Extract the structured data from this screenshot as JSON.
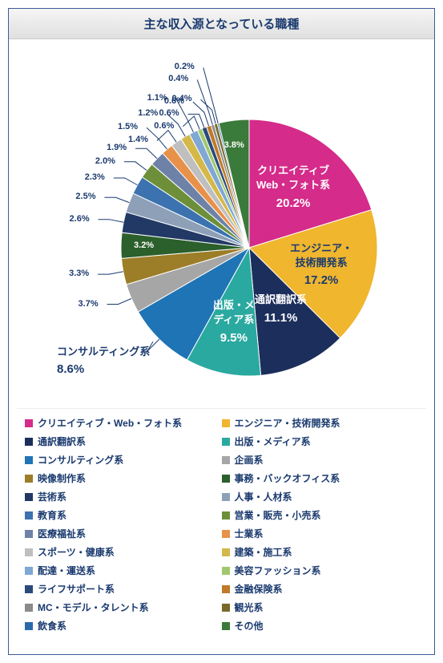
{
  "title": "主な収入源となっている職種",
  "chart": {
    "type": "pie",
    "background_color": "#ffffff",
    "border_color": "#3b5998",
    "title_color": "#1a3a6e",
    "label_color": "#1a3a6e",
    "label_fontsize": 11,
    "slices": [
      {
        "label": "クリエイティブ・Web・フォト系",
        "short": "クリエイティブ\nWeb・フォト系",
        "value": 20.2,
        "color": "#d52b8a",
        "big": true,
        "textcolor": "#ffffff"
      },
      {
        "label": "エンジニア・技術開発系",
        "short": "エンジニア・\n技術開発系",
        "value": 17.2,
        "color": "#f0b62e",
        "big": true,
        "textcolor": "#1a3a6e"
      },
      {
        "label": "通訳翻訳系",
        "short": "通訳翻訳系",
        "value": 11.1,
        "color": "#1c2e5b",
        "big": true,
        "textcolor": "#ffffff"
      },
      {
        "label": "出版・メディア系",
        "short": "出版・メ\nディア系",
        "value": 9.5,
        "color": "#2aa9a0",
        "big": true,
        "textcolor": "#ffffff"
      },
      {
        "label": "コンサルティング系",
        "short": "コンサルティング系",
        "value": 8.6,
        "color": "#1f74b5",
        "big": true,
        "textcolor": "#1a3a6e",
        "outside": true
      },
      {
        "label": "企画系",
        "value": 3.7,
        "color": "#a6a6a6"
      },
      {
        "label": "映像制作系",
        "value": 3.3,
        "color": "#9c7d28"
      },
      {
        "label": "事務・バックオフィス系",
        "value": 3.2,
        "color": "#2b5f2b",
        "textcolor": "#ffffff"
      },
      {
        "label": "芸術系",
        "value": 2.6,
        "color": "#223965"
      },
      {
        "label": "人事・人材系",
        "value": 2.5,
        "color": "#8da0b8"
      },
      {
        "label": "教育系",
        "value": 2.3,
        "color": "#3b72af"
      },
      {
        "label": "営業・販売・小売系",
        "value": 2.0,
        "color": "#6d8f3a"
      },
      {
        "label": "医療福祉系",
        "value": 1.9,
        "color": "#6e82a8"
      },
      {
        "label": "士業系",
        "value": 1.5,
        "color": "#e8914a"
      },
      {
        "label": "スポーツ・健康系",
        "value": 1.4,
        "color": "#bfbfbf"
      },
      {
        "label": "建築・施工系",
        "value": 1.2,
        "color": "#d4b84a"
      },
      {
        "label": "配達・運送系",
        "value": 1.1,
        "color": "#7fa8d4"
      },
      {
        "label": "美容ファッション系",
        "value": 0.6,
        "color": "#a0c86e"
      },
      {
        "label": "ライフサポート系",
        "value": 0.6,
        "color": "#2a4a7a"
      },
      {
        "label": "金融保険系",
        "value": 0.6,
        "color": "#c07a2a"
      },
      {
        "label": "MC・モデル・タレント系",
        "value": 0.4,
        "color": "#8a8a8a"
      },
      {
        "label": "観光系",
        "value": 0.4,
        "color": "#7a6a2a"
      },
      {
        "label": "飲食系",
        "value": 0.2,
        "color": "#2a6aaa"
      },
      {
        "label": "その他",
        "value": 3.8,
        "color": "#3a7a3a"
      }
    ],
    "outer_labels": [
      {
        "text": "3.7%",
        "slice": 5
      },
      {
        "text": "3.3%",
        "slice": 6
      },
      {
        "text": "3.2%",
        "slice": 7,
        "inside": true
      },
      {
        "text": "2.6%",
        "slice": 8
      },
      {
        "text": "2.5%",
        "slice": 9
      },
      {
        "text": "2.3%",
        "slice": 10
      },
      {
        "text": "2.0%",
        "slice": 11
      },
      {
        "text": "1.9%",
        "slice": 12
      },
      {
        "text": "1.5%",
        "slice": 13
      },
      {
        "text": "1.4%",
        "slice": 14
      },
      {
        "text": "1.2%",
        "slice": 15
      },
      {
        "text": "1.1%",
        "slice": 16
      },
      {
        "text": "0.6%",
        "slice": 17
      },
      {
        "text": "0.6%",
        "slice": 18
      },
      {
        "text": "0.6%",
        "slice": 19
      },
      {
        "text": "0.4%",
        "slice": 20
      },
      {
        "text": "0.4%",
        "slice": 21
      },
      {
        "text": "0.2%",
        "slice": 22
      },
      {
        "text": "3.8%",
        "slice": 23,
        "inside": true
      }
    ]
  }
}
